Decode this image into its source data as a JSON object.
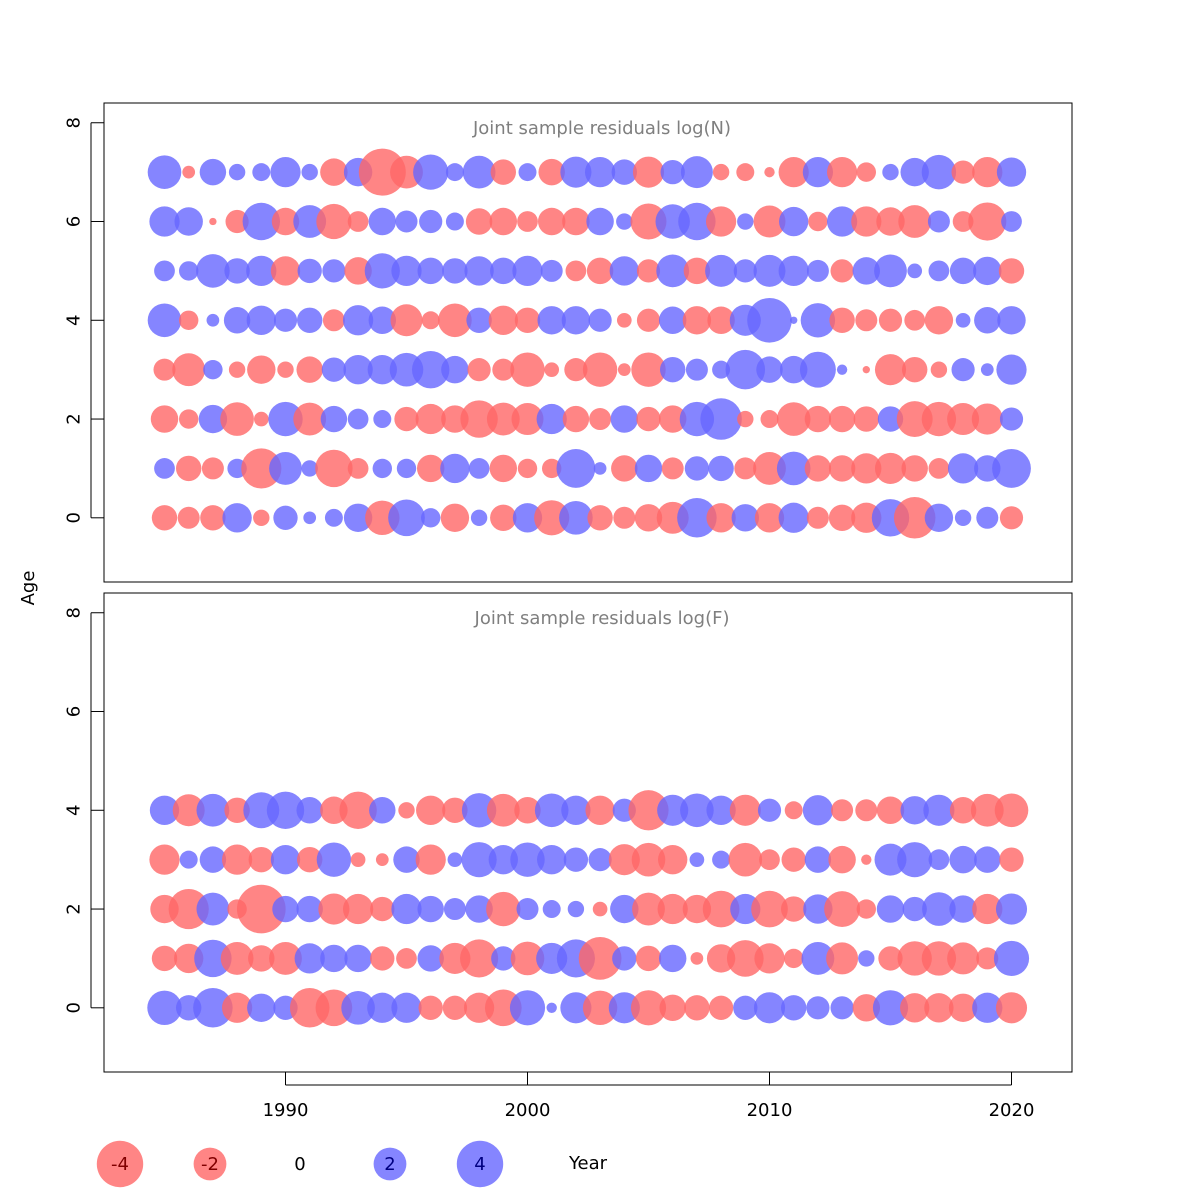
{
  "chart_data": {
    "type": "scatter",
    "encoding": "bubble",
    "ylabel": "Age",
    "xlabel": "Year",
    "years": [
      1985,
      1986,
      1987,
      1988,
      1989,
      1990,
      1991,
      1992,
      1993,
      1994,
      1995,
      1996,
      1997,
      1998,
      1999,
      2000,
      2001,
      2002,
      2003,
      2004,
      2005,
      2006,
      2007,
      2008,
      2009,
      2010,
      2011,
      2012,
      2013,
      2014,
      2015,
      2016,
      2017,
      2018,
      2019,
      2020
    ],
    "xlim": [
      1982.5,
      2022.5
    ],
    "x_ticks": [
      1990,
      2000,
      2010,
      2020
    ],
    "colors": {
      "positive": "#6666ff",
      "negative": "#ff6666"
    },
    "panels": [
      {
        "title": "Joint sample residuals log(N)",
        "ylim": [
          -1.3,
          8.4
        ],
        "y_ticks": [
          0,
          2,
          4,
          6,
          8
        ],
        "rows": [
          {
            "age": 7,
            "residuals": [
              2.1,
              -0.3,
              1.3,
              0.5,
              0.6,
              1.7,
              0.5,
              -1.4,
              1.5,
              -4.1,
              -2.0,
              2.3,
              0.6,
              2.0,
              -1.2,
              0.6,
              -1.3,
              1.8,
              1.7,
              1.2,
              -1.8,
              1.1,
              1.9,
              -0.5,
              -0.6,
              -0.2,
              -1.7,
              1.7,
              -1.7,
              -0.7,
              0.5,
              1.5,
              2.2,
              -1.0,
              -1.7,
              1.6
            ]
          },
          {
            "age": 6,
            "residuals": [
              1.7,
              1.5,
              -0.1,
              -1.0,
              2.6,
              -1.4,
              2.0,
              -2.3,
              -0.8,
              1.4,
              0.9,
              1.0,
              0.6,
              -1.3,
              -1.4,
              -0.8,
              -1.4,
              -1.4,
              1.4,
              0.5,
              -2.4,
              2.2,
              2.6,
              -1.7,
              0.5,
              -1.9,
              1.6,
              -0.7,
              1.7,
              -1.7,
              -1.5,
              -2.0,
              0.9,
              -0.8,
              -2.7,
              0.8
            ]
          },
          {
            "age": 5,
            "residuals": [
              0.8,
              0.7,
              2.1,
              1.2,
              1.7,
              -1.6,
              1.1,
              1.0,
              -1.4,
              2.3,
              1.7,
              1.3,
              1.2,
              1.6,
              1.3,
              1.7,
              0.9,
              -0.8,
              -1.3,
              1.6,
              -1.0,
              2.0,
              -1.3,
              1.9,
              1.0,
              1.9,
              1.7,
              0.9,
              -1.0,
              1.4,
              2.0,
              0.4,
              0.8,
              1.3,
              1.5,
              -1.2
            ]
          },
          {
            "age": 4,
            "residuals": [
              2.1,
              -0.7,
              0.3,
              1.3,
              1.6,
              1.0,
              1.2,
              -0.9,
              1.7,
              1.4,
              -1.9,
              -0.6,
              -2.1,
              1.2,
              -1.6,
              -1.2,
              1.5,
              1.5,
              1.0,
              -0.4,
              -1.0,
              1.4,
              -1.5,
              -1.4,
              1.8,
              3.7,
              0.1,
              2.2,
              -1.2,
              -0.9,
              -1.0,
              -0.8,
              -1.5,
              0.4,
              1.3,
              1.5
            ]
          },
          {
            "age": 3,
            "residuals": [
              -0.9,
              -2.0,
              0.7,
              -0.5,
              -1.5,
              -0.5,
              -1.3,
              1.1,
              1.6,
              1.6,
              2.1,
              2.6,
              1.4,
              -1.0,
              -0.9,
              -2.2,
              -0.4,
              -1.0,
              -2.2,
              -0.3,
              -2.2,
              1.2,
              0.9,
              0.6,
              2.9,
              1.3,
              1.4,
              2.4,
              0.2,
              -0.1,
              -1.8,
              -1.2,
              -0.5,
              1.0,
              0.3,
              1.7
            ]
          },
          {
            "age": 2,
            "residuals": [
              -1.4,
              -0.7,
              1.5,
              -2.1,
              -0.4,
              2.2,
              -2.0,
              1.3,
              0.8,
              0.6,
              -1.1,
              -1.7,
              -1.4,
              -2.6,
              -2.0,
              -1.9,
              1.7,
              -1.3,
              -0.9,
              1.4,
              -1.1,
              -1.4,
              2.2,
              3.2,
              -0.5,
              -0.6,
              -2.1,
              -1.3,
              -1.3,
              -1.2,
              1.2,
              -2.4,
              -2.2,
              -1.9,
              -1.8,
              1.0
            ]
          },
          {
            "age": 1,
            "residuals": [
              0.8,
              -1.2,
              -0.9,
              0.7,
              -3.0,
              2.0,
              0.5,
              -2.6,
              -0.8,
              0.7,
              0.7,
              -1.4,
              1.6,
              0.8,
              -1.4,
              -0.7,
              -0.7,
              2.8,
              0.3,
              -1.3,
              1.4,
              -0.9,
              1.1,
              1.2,
              -0.9,
              -2.0,
              2.1,
              -1.3,
              -1.3,
              -1.7,
              -1.8,
              -1.3,
              -0.8,
              1.7,
              1.3,
              2.8
            ]
          },
          {
            "age": 0,
            "residuals": [
              -1.2,
              -0.9,
              -1.2,
              1.6,
              -0.5,
              1.1,
              0.3,
              0.6,
              1.5,
              -2.2,
              2.5,
              0.7,
              -1.5,
              0.5,
              -1.3,
              1.6,
              -2.3,
              2.1,
              -1.2,
              -0.9,
              -1.4,
              -1.9,
              2.9,
              -1.6,
              1.4,
              -1.6,
              1.7,
              -0.9,
              -1.3,
              -1.7,
              2.6,
              -3.2,
              1.5,
              0.5,
              0.9,
              -1.0
            ]
          }
        ]
      },
      {
        "title": "Joint sample residuals log(F)",
        "ylim": [
          -1.3,
          8.4
        ],
        "y_ticks": [
          0,
          2,
          4,
          6,
          8
        ],
        "rows": [
          {
            "age": 4,
            "residuals": [
              1.6,
              -1.9,
              2.0,
              -1.2,
              2.4,
              2.6,
              1.3,
              -1.4,
              -2.6,
              1.3,
              -0.5,
              -1.6,
              -1.2,
              2.2,
              -2.0,
              -1.3,
              2.1,
              1.6,
              -1.6,
              1.0,
              -3.0,
              1.8,
              2.1,
              1.6,
              -1.8,
              1.0,
              -0.6,
              1.7,
              -0.9,
              -0.9,
              -1.4,
              1.5,
              1.8,
              -1.3,
              -2.0,
              -2.1
            ]
          },
          {
            "age": 3,
            "residuals": [
              -1.7,
              0.6,
              1.3,
              -1.7,
              -1.2,
              1.6,
              -1.2,
              2.2,
              -0.4,
              -0.3,
              1.3,
              -1.7,
              0.4,
              2.3,
              1.6,
              2.2,
              1.6,
              1.1,
              1.0,
              -1.8,
              -2.1,
              -1.6,
              0.4,
              0.6,
              -2.1,
              -0.8,
              -1.1,
              1.3,
              -1.4,
              -0.2,
              1.9,
              2.3,
              0.8,
              1.4,
              1.3,
              -1.1
            ]
          },
          {
            "age": 2,
            "residuals": [
              -1.5,
              -3.0,
              2.0,
              -0.7,
              -4.4,
              1.3,
              1.3,
              -1.8,
              -1.7,
              -1.1,
              1.7,
              1.3,
              0.9,
              1.4,
              -2.2,
              0.9,
              0.6,
              0.5,
              -0.4,
              1.5,
              -2.0,
              -1.7,
              -1.5,
              -2.5,
              1.7,
              -2.5,
              -1.2,
              1.6,
              -2.4,
              -0.7,
              1.4,
              1.1,
              2.1,
              1.4,
              -1.7,
              1.8
            ]
          },
          {
            "age": 1,
            "residuals": [
              -1.2,
              -1.6,
              2.6,
              -2.0,
              -1.3,
              -2.0,
              1.7,
              1.4,
              1.4,
              -1.1,
              -0.8,
              1.3,
              -1.8,
              -2.7,
              1.1,
              -2.1,
              1.8,
              2.7,
              -3.4,
              1.1,
              -1.2,
              1.4,
              -0.3,
              -1.5,
              -2.5,
              -1.7,
              -0.7,
              2.0,
              -1.9,
              0.5,
              -1.1,
              -2.2,
              -2.2,
              -1.9,
              -0.9,
              2.3
            ]
          },
          {
            "age": 0,
            "residuals": [
              2.2,
              1.2,
              2.9,
              -1.7,
              1.5,
              1.1,
              -2.9,
              -2.5,
              2.1,
              1.7,
              1.7,
              -1.1,
              -1.1,
              -1.7,
              -2.5,
              2.3,
              0.2,
              1.8,
              -2.2,
              1.8,
              -2.3,
              -1.3,
              -1.2,
              -1.1,
              1.1,
              1.8,
              1.2,
              1.0,
              1.0,
              -1.4,
              2.3,
              -1.6,
              -1.6,
              -1.5,
              1.7,
              -1.8
            ]
          }
        ]
      }
    ],
    "legend": {
      "values": [
        -4,
        -2,
        0,
        2,
        4
      ],
      "labels": [
        "-4",
        "-2",
        "0",
        "2",
        "4"
      ],
      "title": "Year"
    }
  }
}
